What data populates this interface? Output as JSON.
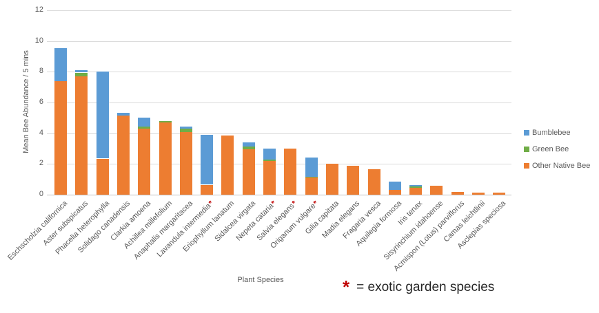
{
  "chart_data": {
    "type": "bar",
    "stacked": true,
    "title": "",
    "xlabel": "Plant Species",
    "ylabel": "Mean Bee Abundance / 5 mins",
    "ylim": [
      0,
      12
    ],
    "yticks": [
      0,
      2,
      4,
      6,
      8,
      10,
      12
    ],
    "grid": true,
    "legend_position": "right",
    "categories": [
      "Eschscholzia californica",
      "Aster subspicatus",
      "Phacelia heterophylla",
      "Solidago canadensis",
      "Clarkia amoena",
      "Achillea millefolium",
      "Anaphalis margaritacea",
      "Lavandula intermedia",
      "Eriophyllum lanatum",
      "Sidalcea virgata",
      "Nepeta cataria",
      "Salvia elegans",
      "Origanum vulgare",
      "Gilia capitata",
      "Madia elegans",
      "Fragaria vesca",
      "Aquilegia formosa",
      "Iris tenax",
      "Sisyrinchium idahoense",
      "Acmispon (Lotus) parviflorus",
      "Camas leichtlinii",
      "Asclepias speciosa"
    ],
    "exotic_categories": [
      "Lavandula intermedia",
      "Nepeta cataria",
      "Salvia elegans",
      "Origanum vulgare"
    ],
    "series": [
      {
        "name": "Bumblebee",
        "color": "#5B9BD5",
        "values": [
          2.15,
          0.15,
          5.65,
          0.2,
          0.55,
          0,
          0.15,
          3.25,
          0,
          0.25,
          0.7,
          0,
          1.25,
          0,
          0,
          0,
          0.55,
          0.1,
          0,
          0,
          0,
          0
        ]
      },
      {
        "name": "Green Bee",
        "color": "#70AD47",
        "values": [
          0,
          0.25,
          0,
          0,
          0.15,
          0.1,
          0.2,
          0,
          0,
          0.2,
          0.1,
          0,
          0.05,
          0,
          0,
          0,
          0,
          0.1,
          0,
          0,
          0,
          0
        ]
      },
      {
        "name": "Other Native Bee",
        "color": "#ED7D31",
        "values": [
          7.4,
          7.7,
          2.35,
          5.15,
          4.3,
          4.7,
          4.1,
          0.65,
          3.85,
          2.95,
          2.2,
          3.0,
          1.1,
          2.0,
          1.9,
          1.65,
          0.3,
          0.45,
          0.6,
          0.2,
          0.15,
          0.15
        ]
      }
    ],
    "totals": [
      9.55,
      8.1,
      8.0,
      5.35,
      5.0,
      4.8,
      4.45,
      3.9,
      3.85,
      3.4,
      3.0,
      3.0,
      2.4,
      2.0,
      1.9,
      1.65,
      0.85,
      0.65,
      0.6,
      0.2,
      0.15,
      0.15
    ],
    "annotation": {
      "marker": "*",
      "marker_color": "#C00000",
      "text": "= exotic garden species"
    },
    "colors": {
      "grid": "#D9D9D9",
      "axis_text": "#595959"
    }
  }
}
